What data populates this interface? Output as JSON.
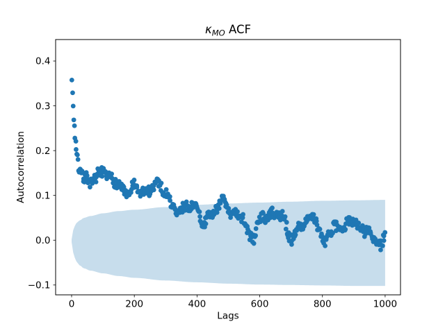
{
  "figure": {
    "background": "#ffffff"
  },
  "title": {
    "kappa": "κ",
    "subscript": "MO",
    "rest": " ACF"
  },
  "colors": {
    "marker": "#1f77b4",
    "band_fill": "#1f77b4",
    "band_opacity": 0.25,
    "axis": "#000000"
  },
  "chart_data": {
    "type": "scatter",
    "title": "κ_MO ACF",
    "xlabel": "Lags",
    "ylabel": "Autocorrelation",
    "xlim": [
      -51,
      1049
    ],
    "ylim": [
      -0.122,
      0.448
    ],
    "grid": false,
    "legend": "none",
    "x_ticks": [
      0,
      200,
      400,
      600,
      800,
      1000
    ],
    "y_ticks": [
      -0.1,
      0.0,
      0.1,
      0.2,
      0.3,
      0.4
    ],
    "series": [
      {
        "name": "acf_points",
        "marker": "circle",
        "anchors": [
          [
            1,
            0.36
          ],
          [
            2,
            0.34
          ],
          [
            3,
            0.328
          ],
          [
            4,
            0.316
          ],
          [
            5,
            0.3
          ],
          [
            6,
            0.288
          ],
          [
            7,
            0.27
          ],
          [
            8,
            0.258
          ],
          [
            10,
            0.243
          ],
          [
            12,
            0.228
          ],
          [
            14,
            0.213
          ],
          [
            16,
            0.198
          ],
          [
            18,
            0.185
          ],
          [
            20,
            0.175
          ],
          [
            23,
            0.163
          ],
          [
            26,
            0.154
          ],
          [
            30,
            0.148
          ],
          [
            35,
            0.142
          ],
          [
            40,
            0.14
          ],
          [
            45,
            0.142
          ],
          [
            50,
            0.14
          ],
          [
            55,
            0.134
          ],
          [
            60,
            0.128
          ],
          [
            65,
            0.124
          ],
          [
            70,
            0.13
          ],
          [
            75,
            0.138
          ],
          [
            80,
            0.146
          ],
          [
            85,
            0.151
          ],
          [
            90,
            0.154
          ],
          [
            95,
            0.155
          ],
          [
            100,
            0.15
          ],
          [
            105,
            0.145
          ],
          [
            110,
            0.142
          ],
          [
            115,
            0.138
          ],
          [
            120,
            0.14
          ],
          [
            125,
            0.142
          ],
          [
            130,
            0.137
          ],
          [
            135,
            0.131
          ],
          [
            140,
            0.128
          ],
          [
            145,
            0.125
          ],
          [
            150,
            0.127
          ],
          [
            155,
            0.123
          ],
          [
            160,
            0.119
          ],
          [
            165,
            0.112
          ],
          [
            170,
            0.105
          ],
          [
            175,
            0.098
          ],
          [
            180,
            0.096
          ],
          [
            185,
            0.104
          ],
          [
            190,
            0.115
          ],
          [
            195,
            0.126
          ],
          [
            200,
            0.124
          ],
          [
            205,
            0.114
          ],
          [
            210,
            0.107
          ],
          [
            215,
            0.104
          ],
          [
            220,
            0.103
          ],
          [
            225,
            0.107
          ],
          [
            230,
            0.11
          ],
          [
            235,
            0.107
          ],
          [
            240,
            0.105
          ],
          [
            245,
            0.109
          ],
          [
            250,
            0.112
          ],
          [
            255,
            0.116
          ],
          [
            260,
            0.121
          ],
          [
            265,
            0.126
          ],
          [
            270,
            0.129
          ],
          [
            275,
            0.132
          ],
          [
            280,
            0.128
          ],
          [
            285,
            0.12
          ],
          [
            290,
            0.111
          ],
          [
            295,
            0.106
          ],
          [
            300,
            0.108
          ],
          [
            305,
            0.101
          ],
          [
            310,
            0.095
          ],
          [
            315,
            0.087
          ],
          [
            320,
            0.079
          ],
          [
            325,
            0.071
          ],
          [
            330,
            0.065
          ],
          [
            335,
            0.06
          ],
          [
            340,
            0.058
          ],
          [
            345,
            0.063
          ],
          [
            350,
            0.069
          ],
          [
            355,
            0.073
          ],
          [
            360,
            0.076
          ],
          [
            365,
            0.079
          ],
          [
            370,
            0.076
          ],
          [
            375,
            0.071
          ],
          [
            380,
            0.073
          ],
          [
            385,
            0.076
          ],
          [
            390,
            0.08
          ],
          [
            395,
            0.077
          ],
          [
            400,
            0.069
          ],
          [
            405,
            0.059
          ],
          [
            410,
            0.049
          ],
          [
            415,
            0.041
          ],
          [
            420,
            0.034
          ],
          [
            425,
            0.038
          ],
          [
            430,
            0.045
          ],
          [
            435,
            0.051
          ],
          [
            440,
            0.056
          ],
          [
            445,
            0.06
          ],
          [
            450,
            0.056
          ],
          [
            455,
            0.061
          ],
          [
            460,
            0.068
          ],
          [
            465,
            0.075
          ],
          [
            470,
            0.081
          ],
          [
            475,
            0.087
          ],
          [
            480,
            0.091
          ],
          [
            485,
            0.087
          ],
          [
            490,
            0.08
          ],
          [
            495,
            0.073
          ],
          [
            500,
            0.068
          ],
          [
            505,
            0.062
          ],
          [
            510,
            0.058
          ],
          [
            515,
            0.056
          ],
          [
            520,
            0.058
          ],
          [
            525,
            0.061
          ],
          [
            530,
            0.053
          ],
          [
            535,
            0.046
          ],
          [
            540,
            0.048
          ],
          [
            545,
            0.05
          ],
          [
            550,
            0.044
          ],
          [
            555,
            0.034
          ],
          [
            560,
            0.024
          ],
          [
            565,
            0.014
          ],
          [
            570,
            0.008
          ],
          [
            575,
            0.004
          ],
          [
            580,
            0.002
          ],
          [
            585,
            0.012
          ],
          [
            590,
            0.028
          ],
          [
            595,
            0.042
          ],
          [
            600,
            0.05
          ],
          [
            605,
            0.055
          ],
          [
            610,
            0.052
          ],
          [
            615,
            0.048
          ],
          [
            620,
            0.045
          ],
          [
            625,
            0.05
          ],
          [
            630,
            0.055
          ],
          [
            635,
            0.06
          ],
          [
            640,
            0.062
          ],
          [
            645,
            0.06
          ],
          [
            650,
            0.055
          ],
          [
            655,
            0.05
          ],
          [
            660,
            0.052
          ],
          [
            665,
            0.055
          ],
          [
            670,
            0.057
          ],
          [
            675,
            0.054
          ],
          [
            680,
            0.044
          ],
          [
            685,
            0.03
          ],
          [
            690,
            0.016
          ],
          [
            695,
            0.006
          ],
          [
            700,
            0.002
          ],
          [
            705,
            0.0
          ],
          [
            710,
            0.01
          ],
          [
            715,
            0.02
          ],
          [
            720,
            0.028
          ],
          [
            725,
            0.031
          ],
          [
            730,
            0.029
          ],
          [
            735,
            0.033
          ],
          [
            740,
            0.039
          ],
          [
            745,
            0.043
          ],
          [
            750,
            0.046
          ],
          [
            755,
            0.043
          ],
          [
            760,
            0.046
          ],
          [
            765,
            0.049
          ],
          [
            770,
            0.051
          ],
          [
            775,
            0.045
          ],
          [
            780,
            0.038
          ],
          [
            785,
            0.03
          ],
          [
            790,
            0.02
          ],
          [
            795,
            0.011
          ],
          [
            800,
            0.005
          ],
          [
            805,
            0.0
          ],
          [
            810,
            -0.004
          ],
          [
            815,
            0.002
          ],
          [
            820,
            0.009
          ],
          [
            825,
            0.016
          ],
          [
            830,
            0.023
          ],
          [
            835,
            0.029
          ],
          [
            840,
            0.033
          ],
          [
            845,
            0.03
          ],
          [
            850,
            0.025
          ],
          [
            855,
            0.02
          ],
          [
            860,
            0.018
          ],
          [
            865,
            0.023
          ],
          [
            870,
            0.029
          ],
          [
            875,
            0.036
          ],
          [
            880,
            0.041
          ],
          [
            885,
            0.043
          ],
          [
            890,
            0.041
          ],
          [
            895,
            0.044
          ],
          [
            900,
            0.046
          ],
          [
            905,
            0.042
          ],
          [
            910,
            0.036
          ],
          [
            915,
            0.03
          ],
          [
            920,
            0.026
          ],
          [
            925,
            0.024
          ],
          [
            930,
            0.022
          ],
          [
            935,
            0.018
          ],
          [
            940,
            0.021
          ],
          [
            945,
            0.024
          ],
          [
            950,
            0.02
          ],
          [
            955,
            0.014
          ],
          [
            960,
            0.008
          ],
          [
            965,
            0.002
          ],
          [
            970,
            -0.003
          ],
          [
            975,
            -0.007
          ],
          [
            980,
            -0.011
          ],
          [
            985,
            -0.013
          ],
          [
            990,
            -0.006
          ],
          [
            995,
            0.007
          ],
          [
            1000,
            0.018
          ]
        ]
      }
    ],
    "confidence_band": {
      "lags": [
        0,
        3,
        8,
        15,
        25,
        40,
        60,
        100,
        150,
        200,
        300,
        400,
        500,
        600,
        700,
        800,
        900,
        1000
      ],
      "top": [
        0.002,
        0.018,
        0.03,
        0.038,
        0.044,
        0.05,
        0.054,
        0.06,
        0.065,
        0.068,
        0.074,
        0.079,
        0.082,
        0.084,
        0.086,
        0.088,
        0.089,
        0.09
      ],
      "bottom": [
        -0.004,
        -0.022,
        -0.037,
        -0.047,
        -0.056,
        -0.063,
        -0.068,
        -0.074,
        -0.08,
        -0.084,
        -0.09,
        -0.094,
        -0.097,
        -0.099,
        -0.1,
        -0.101,
        -0.102,
        -0.102
      ]
    },
    "render": {
      "lag_start": 1,
      "lag_end": 1000,
      "step": 2,
      "jitter_y": 0.011,
      "jitter_x": 1.2,
      "marker_radius": 3.4,
      "seed": 7
    }
  }
}
